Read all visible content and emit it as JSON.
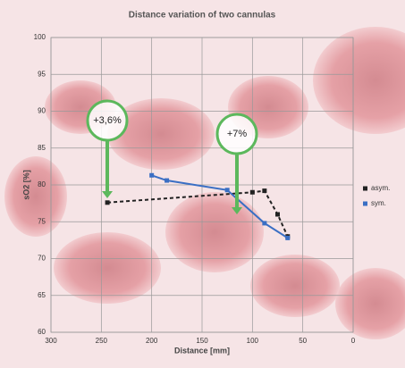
{
  "chart_data": {
    "type": "line",
    "title": "Distance variation of two cannulas",
    "x_label": "Distance [mm]",
    "y_label": "sO2 [%]",
    "xlim": [
      300,
      0
    ],
    "xticks": [
      300,
      250,
      200,
      150,
      100,
      50,
      0
    ],
    "ylim": [
      60,
      100
    ],
    "yticks": [
      60,
      65,
      70,
      75,
      80,
      85,
      90,
      95,
      100
    ],
    "grid": true,
    "legend": "right",
    "series": [
      {
        "name": "asym.",
        "color": "#222222",
        "x": [
          244,
          100,
          88,
          75,
          65
        ],
        "values": [
          77.6,
          79.0,
          79.2,
          76.0,
          73.0
        ]
      },
      {
        "name": "sym.",
        "color": "#3a6fc4",
        "x": [
          200,
          185,
          125,
          88,
          65
        ],
        "values": [
          81.3,
          80.6,
          79.3,
          74.8,
          72.8
        ]
      }
    ],
    "annotations": [
      "+3,6%",
      "+7%"
    ]
  }
}
